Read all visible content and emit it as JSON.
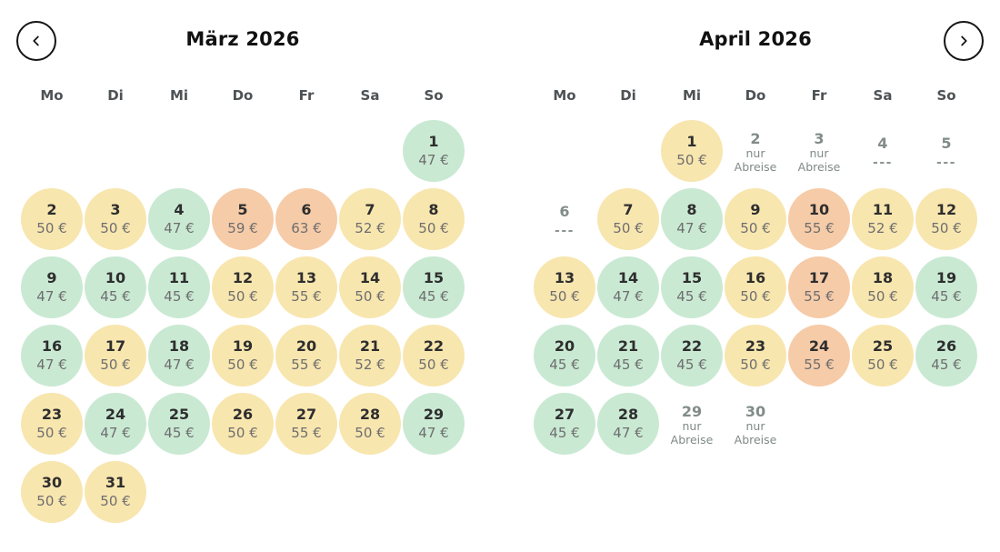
{
  "nav": {
    "prev_icon": "chevron-left",
    "next_icon": "chevron-right"
  },
  "colors": {
    "green": "#c9e9d3",
    "yellow": "#f8e6af",
    "orange": "#f6cba8"
  },
  "labels": {
    "departure_only": "nur Abreise",
    "unavailable": "---"
  },
  "months": [
    {
      "title": "März 2026",
      "weekdays": [
        "Mo",
        "Di",
        "Mi",
        "Do",
        "Fr",
        "Sa",
        "So"
      ],
      "weeks": [
        [
          null,
          null,
          null,
          null,
          null,
          null,
          {
            "day": "1",
            "price": "47 €",
            "level": "green"
          }
        ],
        [
          {
            "day": "2",
            "price": "50 €",
            "level": "yellow"
          },
          {
            "day": "3",
            "price": "50 €",
            "level": "yellow"
          },
          {
            "day": "4",
            "price": "47 €",
            "level": "green"
          },
          {
            "day": "5",
            "price": "59 €",
            "level": "orange"
          },
          {
            "day": "6",
            "price": "63 €",
            "level": "orange"
          },
          {
            "day": "7",
            "price": "52 €",
            "level": "yellow"
          },
          {
            "day": "8",
            "price": "50 €",
            "level": "yellow"
          }
        ],
        [
          {
            "day": "9",
            "price": "47 €",
            "level": "green"
          },
          {
            "day": "10",
            "price": "45 €",
            "level": "green"
          },
          {
            "day": "11",
            "price": "45 €",
            "level": "green"
          },
          {
            "day": "12",
            "price": "50 €",
            "level": "yellow"
          },
          {
            "day": "13",
            "price": "55 €",
            "level": "yellow"
          },
          {
            "day": "14",
            "price": "50 €",
            "level": "yellow"
          },
          {
            "day": "15",
            "price": "45 €",
            "level": "green"
          }
        ],
        [
          {
            "day": "16",
            "price": "47 €",
            "level": "green"
          },
          {
            "day": "17",
            "price": "50 €",
            "level": "yellow"
          },
          {
            "day": "18",
            "price": "47 €",
            "level": "green"
          },
          {
            "day": "19",
            "price": "50 €",
            "level": "yellow"
          },
          {
            "day": "20",
            "price": "55 €",
            "level": "yellow"
          },
          {
            "day": "21",
            "price": "52 €",
            "level": "yellow"
          },
          {
            "day": "22",
            "price": "50 €",
            "level": "yellow"
          }
        ],
        [
          {
            "day": "23",
            "price": "50 €",
            "level": "yellow"
          },
          {
            "day": "24",
            "price": "47 €",
            "level": "green"
          },
          {
            "day": "25",
            "price": "45 €",
            "level": "green"
          },
          {
            "day": "26",
            "price": "50 €",
            "level": "yellow"
          },
          {
            "day": "27",
            "price": "55 €",
            "level": "yellow"
          },
          {
            "day": "28",
            "price": "50 €",
            "level": "yellow"
          },
          {
            "day": "29",
            "price": "47 €",
            "level": "green"
          }
        ],
        [
          {
            "day": "30",
            "price": "50 €",
            "level": "yellow"
          },
          {
            "day": "31",
            "price": "50 €",
            "level": "yellow"
          },
          null,
          null,
          null,
          null,
          null
        ]
      ]
    },
    {
      "title": "April 2026",
      "weekdays": [
        "Mo",
        "Di",
        "Mi",
        "Do",
        "Fr",
        "Sa",
        "So"
      ],
      "weeks": [
        [
          null,
          null,
          {
            "day": "1",
            "price": "50 €",
            "level": "yellow"
          },
          {
            "day": "2",
            "note": [
              "nur",
              "Abreise"
            ]
          },
          {
            "day": "3",
            "note": [
              "nur",
              "Abreise"
            ]
          },
          {
            "day": "4",
            "dashes": "---"
          },
          {
            "day": "5",
            "dashes": "---"
          }
        ],
        [
          {
            "day": "6",
            "dashes": "---"
          },
          {
            "day": "7",
            "price": "50 €",
            "level": "yellow"
          },
          {
            "day": "8",
            "price": "47 €",
            "level": "green"
          },
          {
            "day": "9",
            "price": "50 €",
            "level": "yellow"
          },
          {
            "day": "10",
            "price": "55 €",
            "level": "orange"
          },
          {
            "day": "11",
            "price": "52 €",
            "level": "yellow"
          },
          {
            "day": "12",
            "price": "50 €",
            "level": "yellow"
          }
        ],
        [
          {
            "day": "13",
            "price": "50 €",
            "level": "yellow"
          },
          {
            "day": "14",
            "price": "47 €",
            "level": "green"
          },
          {
            "day": "15",
            "price": "45 €",
            "level": "green"
          },
          {
            "day": "16",
            "price": "50 €",
            "level": "yellow"
          },
          {
            "day": "17",
            "price": "55 €",
            "level": "orange"
          },
          {
            "day": "18",
            "price": "50 €",
            "level": "yellow"
          },
          {
            "day": "19",
            "price": "45 €",
            "level": "green"
          }
        ],
        [
          {
            "day": "20",
            "price": "45 €",
            "level": "green"
          },
          {
            "day": "21",
            "price": "45 €",
            "level": "green"
          },
          {
            "day": "22",
            "price": "45 €",
            "level": "green"
          },
          {
            "day": "23",
            "price": "50 €",
            "level": "yellow"
          },
          {
            "day": "24",
            "price": "55 €",
            "level": "orange"
          },
          {
            "day": "25",
            "price": "50 €",
            "level": "yellow"
          },
          {
            "day": "26",
            "price": "45 €",
            "level": "green"
          }
        ],
        [
          {
            "day": "27",
            "price": "45 €",
            "level": "green"
          },
          {
            "day": "28",
            "price": "47 €",
            "level": "green"
          },
          {
            "day": "29",
            "note": [
              "nur",
              "Abreise"
            ]
          },
          {
            "day": "30",
            "note": [
              "nur",
              "Abreise"
            ]
          },
          null,
          null,
          null
        ]
      ]
    }
  ]
}
